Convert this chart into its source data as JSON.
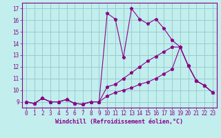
{
  "xlabel": "Windchill (Refroidissement éolien,°C)",
  "bg_color": "#c2eeee",
  "grid_color": "#99cccc",
  "line_color": "#880088",
  "xlim": [
    -0.5,
    23.5
  ],
  "ylim": [
    8.5,
    17.5
  ],
  "xticks": [
    0,
    1,
    2,
    3,
    4,
    5,
    6,
    7,
    8,
    9,
    10,
    11,
    12,
    13,
    14,
    15,
    16,
    17,
    18,
    19,
    20,
    21,
    22,
    23
  ],
  "yticks": [
    9,
    10,
    11,
    12,
    13,
    14,
    15,
    16,
    17
  ],
  "line1_x": [
    0,
    1,
    2,
    3,
    4,
    5,
    6,
    7,
    8,
    9,
    10,
    11,
    12,
    13,
    14,
    15,
    16,
    17,
    18,
    19,
    20,
    21,
    22,
    23
  ],
  "line1_y": [
    9.0,
    8.85,
    9.3,
    9.0,
    9.0,
    9.2,
    8.85,
    8.8,
    9.0,
    9.0,
    16.6,
    16.1,
    12.8,
    17.0,
    16.1,
    15.7,
    16.1,
    15.3,
    14.3,
    13.7,
    12.1,
    10.8,
    10.4,
    9.8
  ],
  "line2_x": [
    0,
    1,
    2,
    3,
    4,
    5,
    6,
    7,
    8,
    9,
    10,
    11,
    12,
    13,
    14,
    15,
    16,
    17,
    18,
    19,
    20,
    21,
    22,
    23
  ],
  "line2_y": [
    9.0,
    8.85,
    9.3,
    9.0,
    9.0,
    9.2,
    8.85,
    8.8,
    9.0,
    9.0,
    10.3,
    10.5,
    11.0,
    11.5,
    12.0,
    12.5,
    12.9,
    13.3,
    13.7,
    13.7,
    12.1,
    10.8,
    10.4,
    9.8
  ],
  "line3_x": [
    0,
    1,
    2,
    3,
    4,
    5,
    6,
    7,
    8,
    9,
    10,
    11,
    12,
    13,
    14,
    15,
    16,
    17,
    18,
    19,
    20,
    21,
    22,
    23
  ],
  "line3_y": [
    9.0,
    8.85,
    9.3,
    9.0,
    9.0,
    9.2,
    8.85,
    8.8,
    9.0,
    9.0,
    9.5,
    9.8,
    10.0,
    10.2,
    10.5,
    10.7,
    11.0,
    11.4,
    11.8,
    13.7,
    12.1,
    10.8,
    10.4,
    9.8
  ],
  "xlabel_fontsize": 6.0,
  "tick_fontsize": 5.5
}
